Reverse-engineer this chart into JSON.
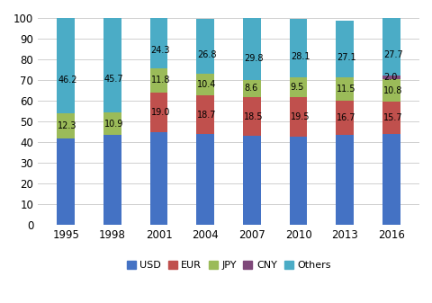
{
  "years": [
    "1995",
    "1998",
    "2001",
    "2004",
    "2007",
    "2010",
    "2013",
    "2016"
  ],
  "USD": [
    41.5,
    43.4,
    44.9,
    43.8,
    43.1,
    42.4,
    43.3,
    43.8
  ],
  "EUR": [
    0,
    0,
    19.0,
    18.7,
    18.5,
    19.5,
    16.7,
    15.7
  ],
  "JPY": [
    12.3,
    10.9,
    11.8,
    10.4,
    8.6,
    9.5,
    11.5,
    10.8
  ],
  "CNY": [
    0,
    0,
    0,
    0,
    0,
    0,
    0,
    2.0
  ],
  "Others_val": [
    46.2,
    45.7,
    24.3,
    26.8,
    29.8,
    28.1,
    27.1,
    27.7
  ],
  "USD_color": "#4472c4",
  "EUR_color": "#c0504d",
  "JPY_color": "#9bbb59",
  "CNY_color": "#7f497a",
  "Others_color": "#4bacc6",
  "label_fontsize": 7.0,
  "ylim": [
    0,
    100
  ],
  "yticks": [
    0,
    10,
    20,
    30,
    40,
    50,
    60,
    70,
    80,
    90,
    100
  ],
  "bar_width": 0.38,
  "figsize": [
    4.81,
    3.37
  ],
  "dpi": 100
}
